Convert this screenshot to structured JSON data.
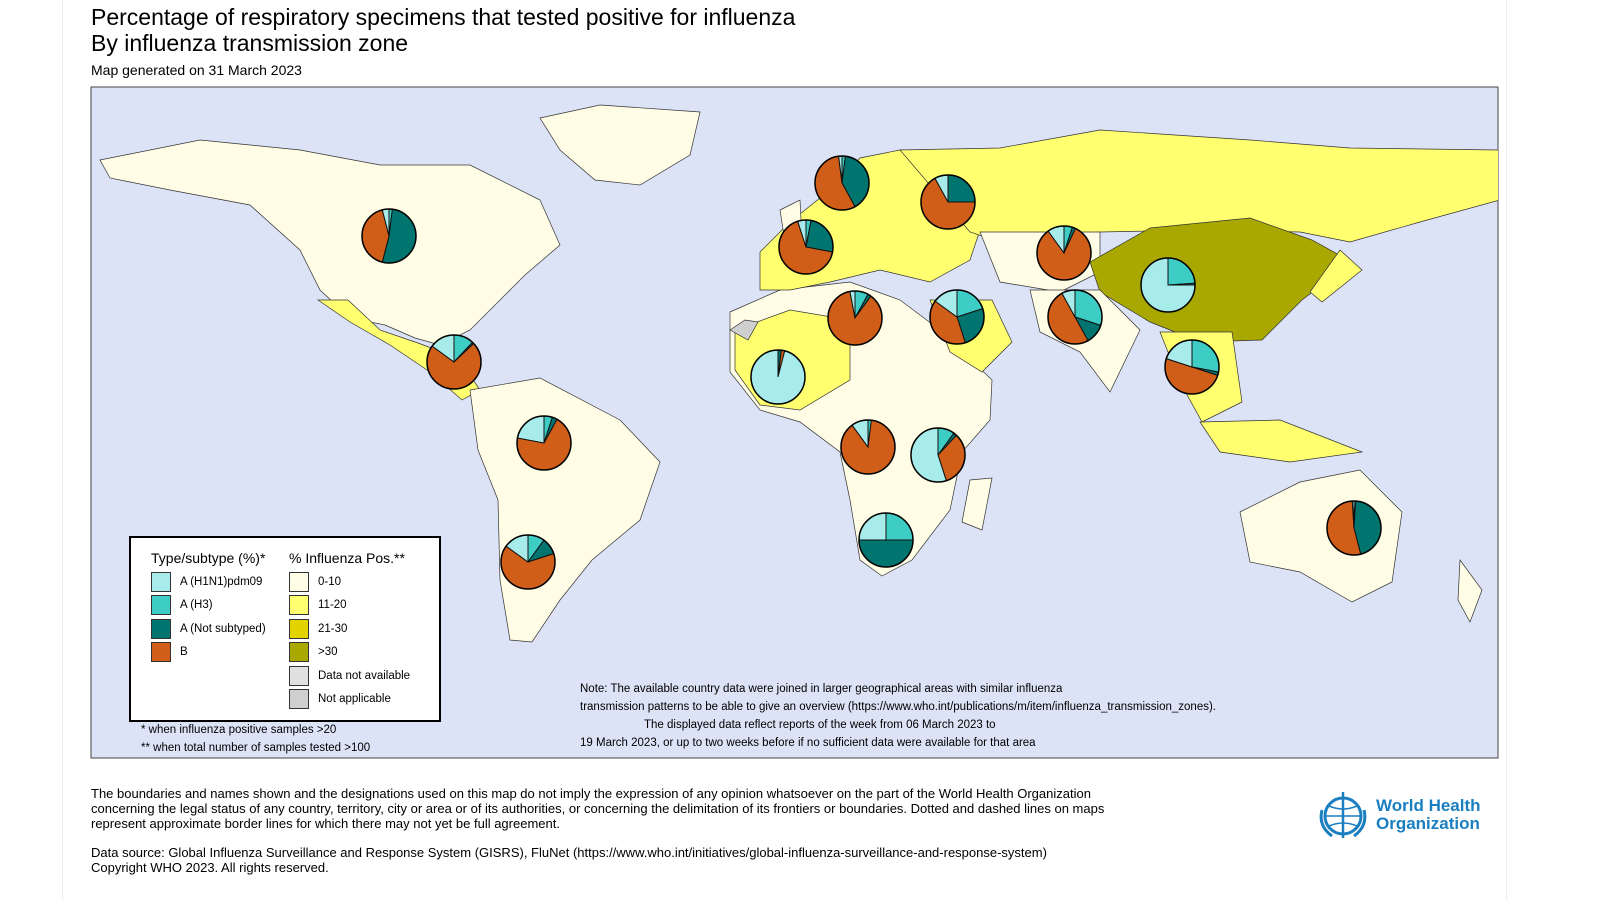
{
  "header": {
    "title_line1": "Percentage of respiratory specimens that tested positive for influenza",
    "title_line2": "By influenza transmission zone",
    "generated": "Map generated on 31 March 2023"
  },
  "colors": {
    "ocean": "#dde3f7",
    "pos_0_10": "#fffde6",
    "pos_11_20": "#ffff70",
    "pos_21_30": "#e3d400",
    "pos_gt30": "#a8a800",
    "not_available": "#e0e0e0",
    "not_applicable": "#cfcfcf",
    "h1n1": "#a8ebeb",
    "h3": "#3ecdc4",
    "not_subtyped": "#007570",
    "b": "#d05e18"
  },
  "legend": {
    "type_title": "Type/subtype (%)*",
    "pos_title": "% Influenza Pos.**",
    "types": [
      "A (H1N1)pdm09",
      "A (H3)",
      "A (Not subtyped)",
      "B"
    ],
    "pos": [
      "0-10",
      "11-20",
      "21-30",
      ">30",
      "Data not available",
      "Not applicable"
    ],
    "footnote1": "* when influenza positive samples >20",
    "footnote2": "** when total number of samples tested >100"
  },
  "note": {
    "line1": "Note: The available country data were joined in larger geographical areas with similar influenza",
    "line2": "transmission patterns to be able to give an overview (https://www.who.int/publications/m/item/influenza_transmission_zones).",
    "line3": "The displayed data reflect reports of the week from 06 March 2023 to",
    "line4": "19 March 2023, or up to two weeks before if no sufficient data were available for that area"
  },
  "pies_percent_h1n1_h3_notsubtyped_b": [
    [
      4,
      2,
      52,
      42
    ],
    [
      15,
      12,
      1,
      72
    ],
    [
      22,
      5,
      3,
      70
    ],
    [
      15,
      10,
      10,
      65
    ],
    [
      2,
      2,
      40,
      56
    ],
    [
      5,
      3,
      25,
      67
    ],
    [
      8,
      0,
      25,
      67
    ],
    [
      3,
      8,
      2,
      87
    ],
    [
      96,
      0,
      2,
      2
    ],
    [
      10,
      2,
      0,
      88
    ],
    [
      55,
      10,
      2,
      33
    ],
    [
      25,
      25,
      50,
      0
    ],
    [
      15,
      20,
      25,
      40
    ],
    [
      10,
      5,
      2,
      83
    ],
    [
      8,
      30,
      12,
      50
    ],
    [
      75,
      24,
      1,
      0
    ],
    [
      20,
      28,
      2,
      50
    ],
    [
      1,
      1,
      45,
      53
    ]
  ],
  "footer": {
    "disclaimer1": "The boundaries and names shown and the designations used on this map do not imply the expression of any opinion whatsoever on the part of the World Health Organization",
    "disclaimer2": "concerning the legal status of any country, territory, city or area or of its authorities, or concerning the delimitation of its frontiers or boundaries. Dotted and dashed lines on maps",
    "disclaimer3": "represent approximate border lines for which there may not yet be full agreement.",
    "source": "Data source: Global Influenza Surveillance and Response System (GISRS), FluNet (https://www.who.int/initiatives/global-influenza-surveillance-and-response-system)",
    "copyright": "Copyright WHO 2023. All rights reserved.",
    "logo_line1": "World Health",
    "logo_line2": "Organization"
  }
}
